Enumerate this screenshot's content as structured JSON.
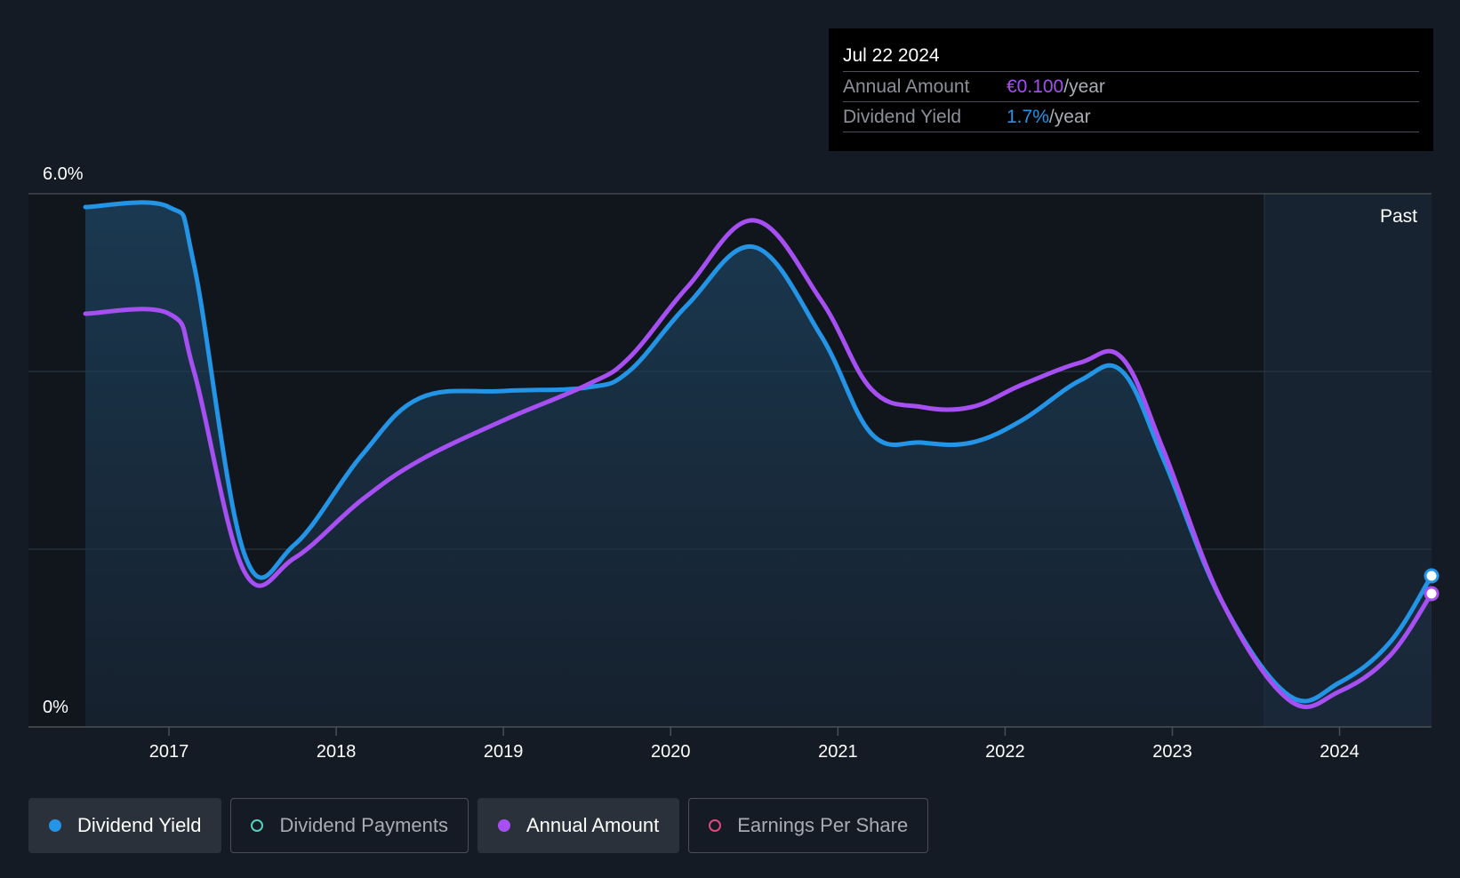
{
  "tooltip": {
    "date": "Jul 22 2024",
    "rows": [
      {
        "label": "Annual Amount",
        "value": "€0.100",
        "unit": "/year"
      },
      {
        "label": "Dividend Yield",
        "value": "1.7%",
        "unit": "/year"
      }
    ]
  },
  "legend": [
    {
      "label": "Dividend Yield",
      "color": "#2394e6",
      "active": true,
      "filled": true
    },
    {
      "label": "Dividend Payments",
      "color": "#4fd1c0",
      "active": false,
      "filled": false
    },
    {
      "label": "Annual Amount",
      "color": "#a64ff2",
      "active": true,
      "filled": true
    },
    {
      "label": "Earnings Per Share",
      "color": "#e0487e",
      "active": false,
      "filled": false
    }
  ],
  "chart_data": {
    "type": "line",
    "y_tick_labels": [
      "6.0%",
      "0%"
    ],
    "ylim": [
      0,
      6.0
    ],
    "y_unit": "%",
    "x_tick_labels": [
      "2017",
      "2018",
      "2019",
      "2020",
      "2021",
      "2022",
      "2023",
      "2024"
    ],
    "x_ticks": [
      2017,
      2018,
      2019,
      2020,
      2021,
      2022,
      2023,
      2024
    ],
    "xlim": [
      2016.5,
      2024.55
    ],
    "past_start": 2023.55,
    "past_label": "Past",
    "grid": true,
    "gridlines_y": [
      2,
      4,
      6
    ],
    "colors": {
      "yield": "#2394e6",
      "annual": "#a64ff2"
    },
    "series": [
      {
        "name": "Dividend Yield",
        "color": "#2394e6",
        "x": [
          2016.5,
          2017.0,
          2017.15,
          2017.45,
          2017.75,
          2018.15,
          2018.5,
          2019.0,
          2019.5,
          2019.75,
          2020.1,
          2020.5,
          2020.9,
          2021.2,
          2021.5,
          2021.8,
          2022.1,
          2022.45,
          2022.7,
          2022.95,
          2023.3,
          2023.7,
          2024.0,
          2024.3,
          2024.55
        ],
        "y": [
          5.85,
          5.85,
          5.2,
          1.95,
          2.05,
          3.05,
          3.7,
          3.78,
          3.82,
          4.0,
          4.75,
          5.4,
          4.4,
          3.3,
          3.2,
          3.2,
          3.45,
          3.9,
          4.0,
          3.0,
          1.4,
          0.35,
          0.5,
          0.95,
          1.7
        ]
      },
      {
        "name": "Annual Amount",
        "color": "#a64ff2",
        "x": [
          2016.5,
          2017.0,
          2017.15,
          2017.45,
          2017.75,
          2018.15,
          2018.5,
          2019.0,
          2019.5,
          2019.75,
          2020.1,
          2020.5,
          2020.9,
          2021.2,
          2021.5,
          2021.8,
          2022.1,
          2022.45,
          2022.7,
          2022.95,
          2023.3,
          2023.7,
          2024.0,
          2024.3,
          2024.55
        ],
        "y": [
          4.65,
          4.65,
          4.0,
          1.75,
          1.9,
          2.55,
          3.0,
          3.45,
          3.85,
          4.15,
          4.95,
          5.7,
          4.8,
          3.8,
          3.6,
          3.6,
          3.85,
          4.1,
          4.15,
          3.1,
          1.4,
          0.3,
          0.4,
          0.8,
          1.5
        ]
      }
    ]
  }
}
